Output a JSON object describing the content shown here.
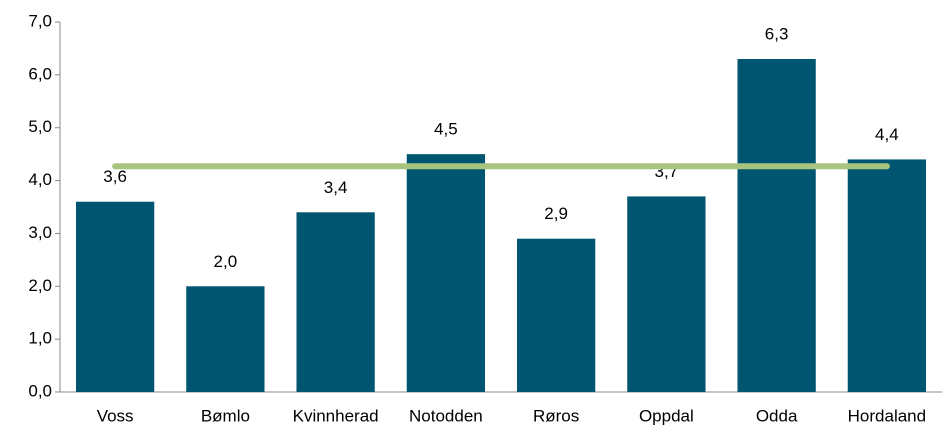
{
  "chart_data": {
    "type": "bar",
    "categories": [
      "Voss",
      "Bømlo",
      "Kvinnherad",
      "Notodden",
      "Røros",
      "Oppdal",
      "Odda",
      "Hordaland"
    ],
    "values": [
      3.6,
      2.0,
      3.4,
      4.5,
      2.9,
      3.7,
      6.3,
      4.4
    ],
    "value_labels": [
      "3,6",
      "2,0",
      "3,4",
      "4,5",
      "2,9",
      "3,7",
      "6,3",
      "4,4"
    ],
    "color": "#005670",
    "line": {
      "type": "line",
      "color": "#a9c47f",
      "values": [
        4.27,
        4.27,
        4.27,
        4.27,
        4.27,
        4.27,
        4.27,
        4.27
      ]
    },
    "ylim": [
      0,
      7
    ],
    "yticks": [
      {
        "value": 0,
        "label": "0,0"
      },
      {
        "value": 1,
        "label": "1,0"
      },
      {
        "value": 2,
        "label": "2,0"
      },
      {
        "value": 3,
        "label": "3,0"
      },
      {
        "value": 4,
        "label": "4,0"
      },
      {
        "value": 5,
        "label": "5,0"
      },
      {
        "value": 6,
        "label": "6,0"
      },
      {
        "value": 7,
        "label": "7,0"
      }
    ],
    "grid": false
  }
}
